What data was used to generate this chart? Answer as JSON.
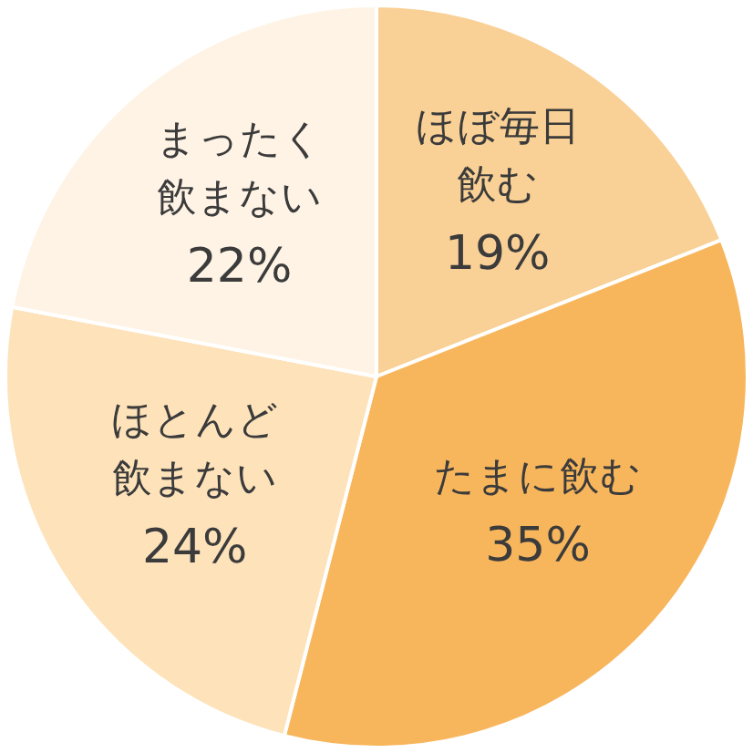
{
  "chart_data": {
    "type": "pie",
    "categories": [
      "ほぼ毎日飲む",
      "たまに飲む",
      "ほとんど飲まない",
      "まったく飲まない"
    ],
    "values": [
      19,
      35,
      24,
      22
    ],
    "value_labels": [
      "19%",
      "35%",
      "24%",
      "22%"
    ],
    "colors": [
      "#f9d095",
      "#f8b65c",
      "#fde2ba",
      "#fef3e4"
    ],
    "legend": false
  }
}
